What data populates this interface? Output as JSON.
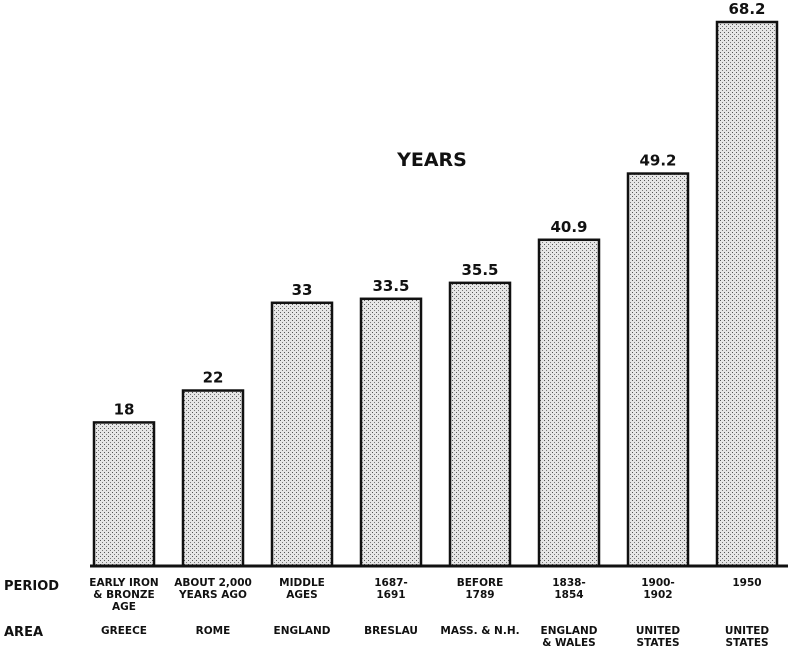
{
  "chart_data": {
    "type": "bar",
    "title": "YEARS",
    "values": [
      18,
      22,
      33,
      33.5,
      35.5,
      40.9,
      49.2,
      68.2
    ],
    "value_labels": [
      "18",
      "22",
      "33",
      "33.5",
      "35.5",
      "40.9",
      "49.2",
      "68.2"
    ],
    "row_labels": {
      "period": "PERIOD",
      "area": "AREA"
    },
    "periods": [
      [
        "EARLY IRON",
        "& BRONZE",
        "AGE"
      ],
      [
        "ABOUT 2,000",
        "YEARS AGO"
      ],
      [
        "MIDDLE",
        "AGES"
      ],
      [
        "1687-",
        "1691"
      ],
      [
        "BEFORE",
        "1789"
      ],
      [
        "1838-",
        "1854"
      ],
      [
        "1900-",
        "1902"
      ],
      [
        "1950"
      ]
    ],
    "areas": [
      [
        "GREECE"
      ],
      [
        "ROME"
      ],
      [
        "ENGLAND"
      ],
      [
        "BRESLAU"
      ],
      [
        "MASS. & N.H."
      ],
      [
        "ENGLAND",
        "& WALES"
      ],
      [
        "UNITED",
        "STATES"
      ],
      [
        "UNITED",
        "STATES"
      ]
    ],
    "ylim": [
      0,
      68.2
    ],
    "grid": false,
    "bar_fill": "#d4d4d4",
    "bar_stroke": "#111111"
  }
}
